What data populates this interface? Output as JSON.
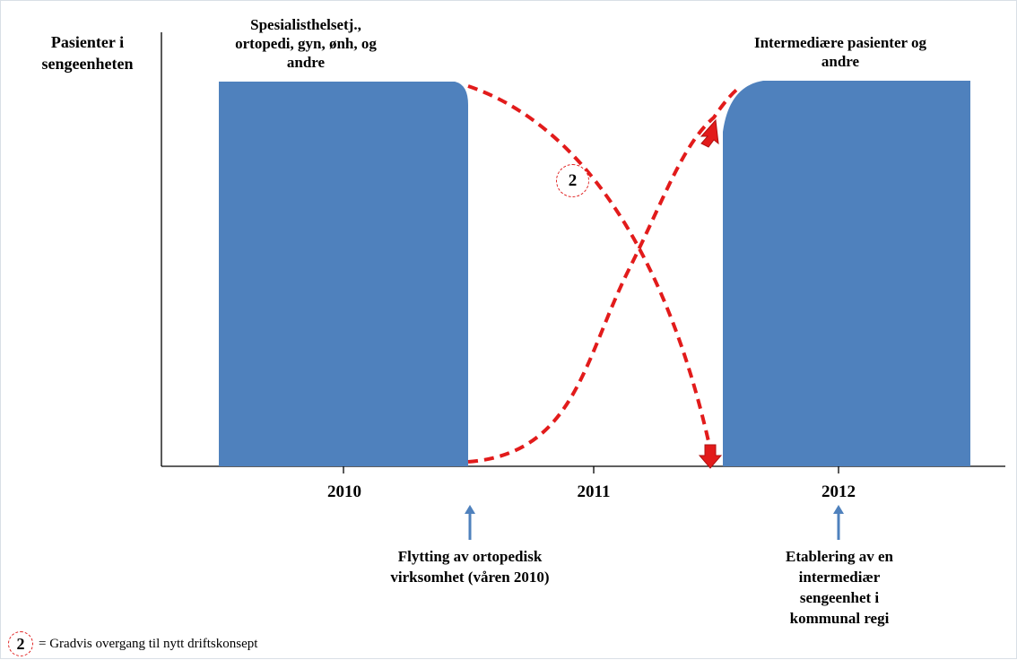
{
  "y_axis_label": "Pasienter i sengeenheten",
  "block_labels": {
    "left": "Spesialisthelsetj., ortopedi, gyn, ønh, og andre",
    "right": "Intermediære pasienter og andre"
  },
  "years": [
    "2010",
    "2011",
    "2012"
  ],
  "annotations": {
    "left": "Flytting av ortopedisk virksomhet (våren 2010)",
    "right": "Etablering av en intermediær sengeenhet i kommunal regi"
  },
  "badge_number": "2",
  "legend": {
    "badge": "2",
    "text": "= Gradvis overgang til nytt driftskonsept"
  },
  "colors": {
    "block": "#4f81bd",
    "dashed_curve": "#e21b1b",
    "arrow_fill": "#e21b1b",
    "arrow_stroke": "#b01010",
    "up_arrow": "#4f81bd",
    "axis": "#000000"
  }
}
